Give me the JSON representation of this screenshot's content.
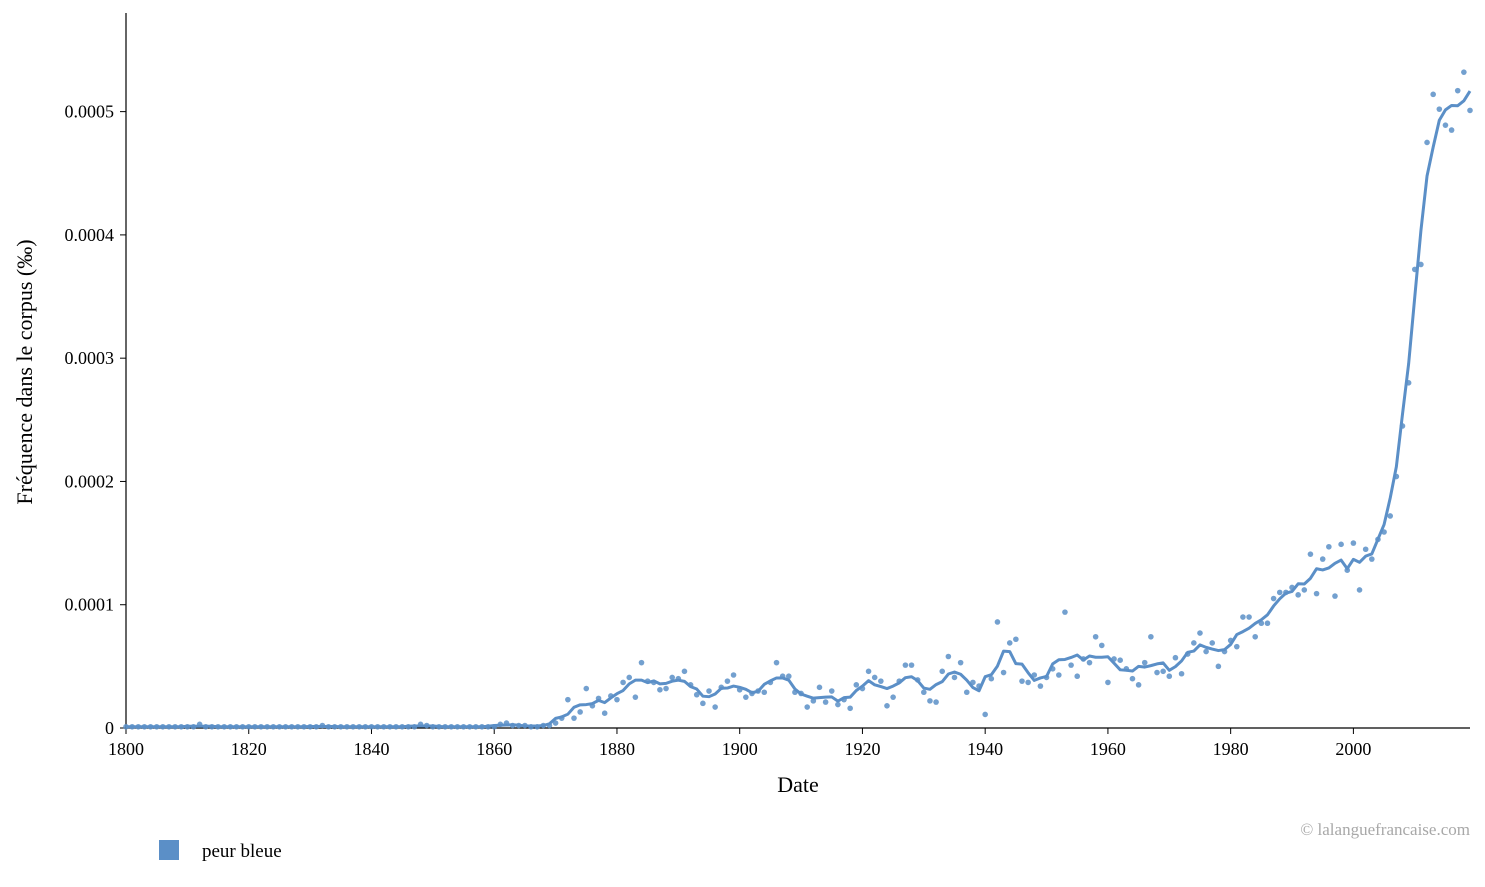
{
  "chart_data": {
    "type": "scatter",
    "xlabel": "Date",
    "ylabel": "Fréquence dans le corpus (‰)",
    "xlim": [
      1800,
      2019
    ],
    "ylim": [
      0,
      0.00058
    ],
    "x_ticks": [
      1800,
      1820,
      1840,
      1860,
      1880,
      1900,
      1920,
      1940,
      1960,
      1980,
      2000
    ],
    "y_ticks": [
      0,
      0.0001,
      0.0002,
      0.0003,
      0.0004,
      0.0005
    ],
    "y_tick_labels": [
      "0",
      "0.0001",
      "0.0002",
      "0.0003",
      "0.0004",
      "0.0005"
    ],
    "grid": false,
    "legend_position": "bottom-left",
    "series": [
      {
        "name": "peur bleue",
        "color": "#5b8fc7",
        "x_start": 1800,
        "x_step": 1,
        "points": [
          1e-06,
          1e-06,
          1e-06,
          1e-06,
          1e-06,
          1e-06,
          1e-06,
          1e-06,
          1e-06,
          1e-06,
          1e-06,
          1e-06,
          3e-06,
          1e-06,
          1e-06,
          1e-06,
          1e-06,
          1e-06,
          1e-06,
          1e-06,
          1e-06,
          1e-06,
          1e-06,
          1e-06,
          1e-06,
          1e-06,
          1e-06,
          1e-06,
          1e-06,
          1e-06,
          1e-06,
          1e-06,
          2e-06,
          1e-06,
          1e-06,
          1e-06,
          1e-06,
          1e-06,
          1e-06,
          1e-06,
          1e-06,
          1e-06,
          1e-06,
          1e-06,
          1e-06,
          1e-06,
          1e-06,
          1e-06,
          3e-06,
          2e-06,
          1e-06,
          1e-06,
          1e-06,
          1e-06,
          1e-06,
          1e-06,
          1e-06,
          1e-06,
          1e-06,
          1e-06,
          1e-06,
          3e-06,
          4e-06,
          2e-06,
          2e-06,
          2e-06,
          1e-06,
          1e-06,
          2e-06,
          2e-06,
          4e-06,
          8e-06,
          2.3e-05,
          8e-06,
          1.3e-05,
          3.2e-05,
          1.8e-05,
          2.4e-05,
          1.2e-05,
          2.6e-05,
          2.3e-05,
          3.7e-05,
          4.1e-05,
          2.5e-05,
          5.3e-05,
          3.8e-05,
          3.7e-05,
          3.1e-05,
          3.2e-05,
          4.1e-05,
          4e-05,
          4.6e-05,
          3.5e-05,
          2.7e-05,
          2e-05,
          3e-05,
          1.7e-05,
          3.3e-05,
          3.8e-05,
          4.3e-05,
          3.1e-05,
          2.5e-05,
          2.8e-05,
          3e-05,
          2.9e-05,
          3.7e-05,
          5.3e-05,
          4.2e-05,
          4.2e-05,
          2.9e-05,
          2.8e-05,
          1.7e-05,
          2.2e-05,
          3.3e-05,
          2.1e-05,
          3e-05,
          1.9e-05,
          2.3e-05,
          1.6e-05,
          3.5e-05,
          3.2e-05,
          4.6e-05,
          4.1e-05,
          3.8e-05,
          1.8e-05,
          2.5e-05,
          3.8e-05,
          5.1e-05,
          5.1e-05,
          3.9e-05,
          2.9e-05,
          2.2e-05,
          2.1e-05,
          4.6e-05,
          5.8e-05,
          4.1e-05,
          5.3e-05,
          2.9e-05,
          3.7e-05,
          3.4e-05,
          1.1e-05,
          4e-05,
          8.6e-05,
          4.5e-05,
          6.9e-05,
          7.2e-05,
          3.8e-05,
          3.7e-05,
          4.3e-05,
          3.4e-05,
          4.1e-05,
          4.8e-05,
          4.3e-05,
          9.4e-05,
          5.1e-05,
          4.2e-05,
          5.6e-05,
          5.3e-05,
          7.4e-05,
          6.7e-05,
          3.7e-05,
          5.6e-05,
          5.5e-05,
          4.8e-05,
          4e-05,
          3.5e-05,
          5.3e-05,
          7.4e-05,
          4.5e-05,
          4.6e-05,
          4.2e-05,
          5.7e-05,
          4.4e-05,
          6e-05,
          6.9e-05,
          7.7e-05,
          6.2e-05,
          6.9e-05,
          5e-05,
          6.2e-05,
          7.1e-05,
          6.6e-05,
          9e-05,
          9e-05,
          7.4e-05,
          8.5e-05,
          8.5e-05,
          0.000105,
          0.00011,
          0.00011,
          0.000114,
          0.000108,
          0.000112,
          0.000141,
          0.000109,
          0.000137,
          0.000147,
          0.000107,
          0.000149,
          0.000128,
          0.00015,
          0.000112,
          0.000145,
          0.000137,
          0.000153,
          0.000159,
          0.000172,
          0.000204,
          0.000245,
          0.00028,
          0.000372,
          0.000376,
          0.000475,
          0.000514,
          0.000502,
          0.000489,
          0.000485,
          0.000517,
          0.000532,
          0.000501
        ]
      }
    ],
    "credit": "© lalanguefrancaise.com"
  }
}
